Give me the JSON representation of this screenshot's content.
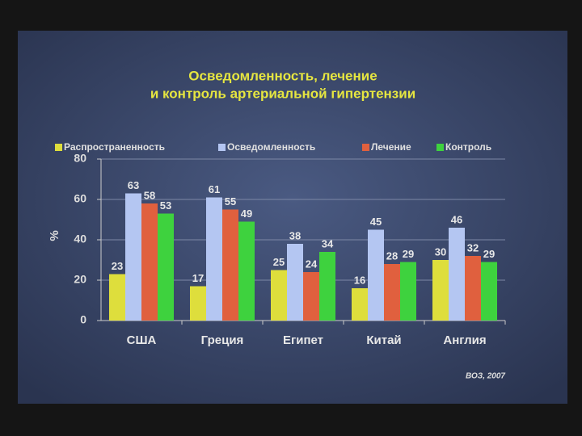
{
  "chart_data": {
    "type": "bar",
    "title": [
      "Осведомленность, лечение",
      "и контроль артериальной гипертензии"
    ],
    "y_label": "%",
    "source": "ВОЗ, 2007",
    "categories": [
      "США",
      "Греция",
      "Египет",
      "Китай",
      "Англия"
    ],
    "series": [
      {
        "name": "Распространенность",
        "color": "#dede3c",
        "values": [
          23,
          17,
          25,
          16,
          30
        ]
      },
      {
        "name": "Осведомленность",
        "color": "#b4c6f2",
        "values": [
          63,
          61,
          38,
          45,
          46
        ]
      },
      {
        "name": "Лечение",
        "color": "#e0603e",
        "values": [
          58,
          55,
          24,
          28,
          32
        ]
      },
      {
        "name": "Контроль",
        "color": "#3ed23e",
        "values": [
          53,
          49,
          34,
          29,
          29
        ]
      }
    ],
    "ylim": [
      0,
      80
    ],
    "yticks": [
      0,
      20,
      40,
      60,
      80
    ],
    "grid": true
  }
}
